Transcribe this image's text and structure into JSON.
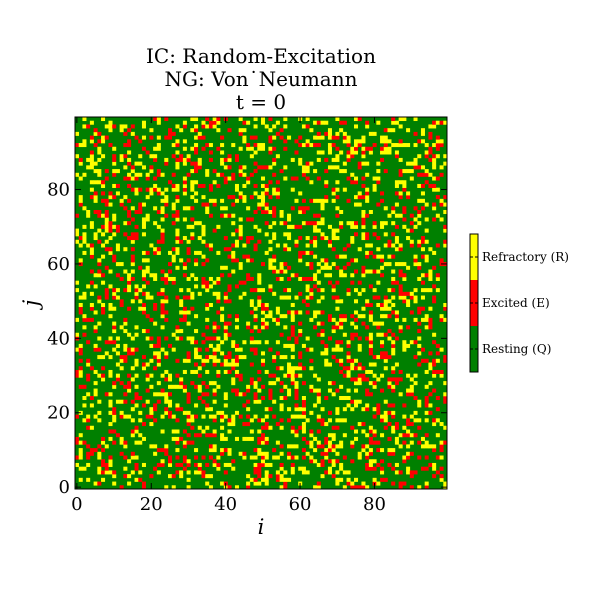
{
  "chart_data": {
    "type": "heatmap",
    "title_lines": [
      "IC: Random-Excitation",
      "NG: Von˙Neumann",
      "t = 0"
    ],
    "xlabel": "i",
    "ylabel": "j",
    "grid_size": [
      100,
      100
    ],
    "xlim": [
      0,
      99
    ],
    "ylim": [
      0,
      99
    ],
    "x_ticks": [
      0,
      20,
      40,
      60,
      80
    ],
    "y_ticks": [
      0,
      20,
      40,
      60,
      80
    ],
    "grid": false,
    "states": [
      {
        "name": "Resting (Q)",
        "value": 0,
        "color": "#008000",
        "approx_fraction": 0.72
      },
      {
        "name": "Excited (E)",
        "value": 1,
        "color": "#ff0000",
        "approx_fraction": 0.12
      },
      {
        "name": "Refractory (R)",
        "value": 2,
        "color": "#ffff00",
        "approx_fraction": 0.16
      }
    ],
    "colorbar": {
      "placement": "right",
      "labels": [
        "Resting (Q)",
        "Excited (E)",
        "Refractory (R)"
      ]
    }
  }
}
